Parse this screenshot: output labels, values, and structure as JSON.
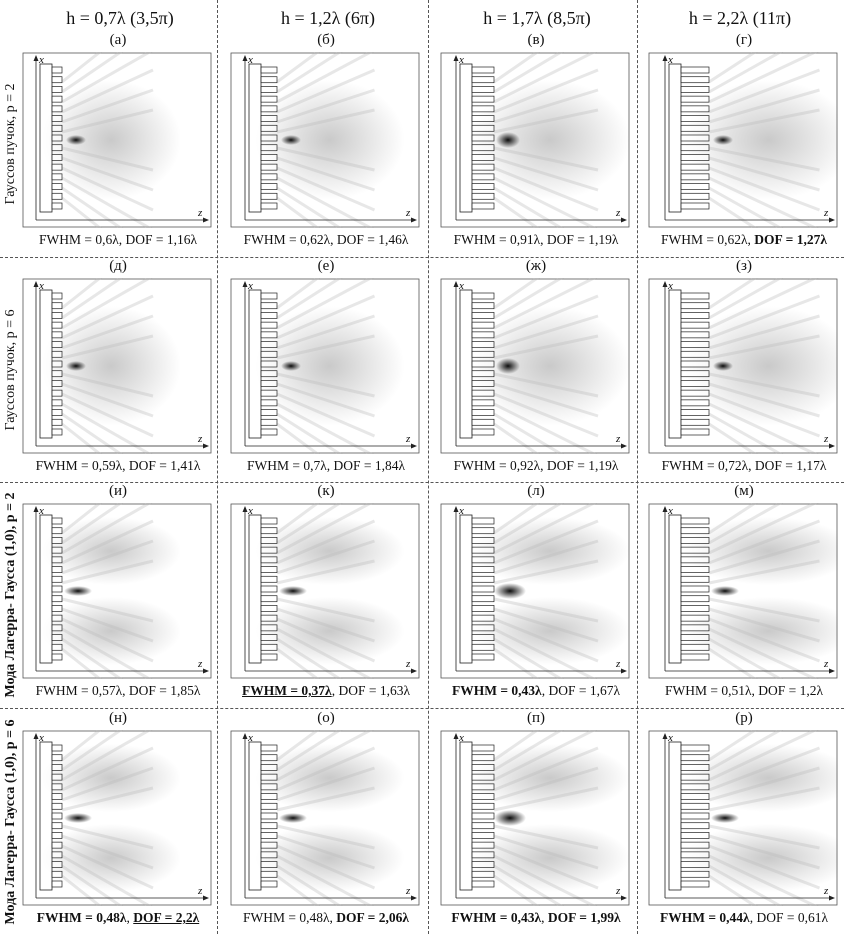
{
  "columns": [
    "h = 0,7λ (3,5π)",
    "h = 1,2λ (6π)",
    "h = 1,7λ (8,5π)",
    "h = 2,2λ (11π)"
  ],
  "rows": [
    {
      "label": "Гауссов пучок, p = 2",
      "bold": false,
      "cells": [
        {
          "letter": "(а)",
          "fwhm": "FWHM = 0,6λ",
          "dof": "DOF = 1,16λ",
          "fwhm_bold": false,
          "dof_bold": false,
          "fwhm_u": false,
          "dof_u": false
        },
        {
          "letter": "(б)",
          "fwhm": "FWHM = 0,62λ",
          "dof": "DOF = 1,46λ",
          "fwhm_bold": false,
          "dof_bold": false,
          "fwhm_u": false,
          "dof_u": false
        },
        {
          "letter": "(в)",
          "fwhm": "FWHM = 0,91λ",
          "dof": "DOF = 1,19λ",
          "fwhm_bold": false,
          "dof_bold": false,
          "fwhm_u": false,
          "dof_u": false
        },
        {
          "letter": "(г)",
          "fwhm": "FWHM = 0,62λ",
          "dof": "DOF = 1,27λ",
          "fwhm_bold": false,
          "dof_bold": true,
          "fwhm_u": false,
          "dof_u": false
        }
      ]
    },
    {
      "label": "Гауссов пучок, p = 6",
      "bold": false,
      "cells": [
        {
          "letter": "(д)",
          "fwhm": "FWHM = 0,59λ",
          "dof": "DOF = 1,41λ",
          "fwhm_bold": false,
          "dof_bold": false,
          "fwhm_u": false,
          "dof_u": false
        },
        {
          "letter": "(е)",
          "fwhm": "FWHM = 0,7λ",
          "dof": "DOF = 1,84λ",
          "fwhm_bold": false,
          "dof_bold": false,
          "fwhm_u": false,
          "dof_u": false
        },
        {
          "letter": "(ж)",
          "fwhm": "FWHM = 0,92λ",
          "dof": "DOF = 1,19λ",
          "fwhm_bold": false,
          "dof_bold": false,
          "fwhm_u": false,
          "dof_u": false
        },
        {
          "letter": "(з)",
          "fwhm": "FWHM = 0,72λ",
          "dof": "DOF = 1,17λ",
          "fwhm_bold": false,
          "dof_bold": false,
          "fwhm_u": false,
          "dof_u": false
        }
      ]
    },
    {
      "label": "Мода Лагерра- Гаусса (1,0), p = 2",
      "bold": true,
      "cells": [
        {
          "letter": "(и)",
          "fwhm": "FWHM = 0,57λ",
          "dof": "DOF = 1,85λ",
          "fwhm_bold": false,
          "dof_bold": false,
          "fwhm_u": false,
          "dof_u": false
        },
        {
          "letter": "(к)",
          "fwhm": "FWHM = 0,37λ",
          "dof": "DOF = 1,63λ",
          "fwhm_bold": true,
          "dof_bold": false,
          "fwhm_u": true,
          "dof_u": false
        },
        {
          "letter": "(л)",
          "fwhm": "FWHM = 0,43λ",
          "dof": "DOF = 1,67λ",
          "fwhm_bold": true,
          "dof_bold": false,
          "fwhm_u": false,
          "dof_u": false
        },
        {
          "letter": "(м)",
          "fwhm": "FWHM = 0,51λ",
          "dof": "DOF = 1,2λ",
          "fwhm_bold": false,
          "dof_bold": false,
          "fwhm_u": false,
          "dof_u": false
        }
      ]
    },
    {
      "label": "Мода Лагерра- Гаусса (1,0), p = 6",
      "bold": true,
      "cells": [
        {
          "letter": "(н)",
          "fwhm": "FWHM = 0,48λ",
          "dof": "DOF = 2,2λ",
          "fwhm_bold": true,
          "dof_bold": true,
          "fwhm_u": false,
          "dof_u": true
        },
        {
          "letter": "(о)",
          "fwhm": "FWHM = 0,48λ",
          "dof": "DOF = 2,06λ",
          "fwhm_bold": false,
          "dof_bold": true,
          "fwhm_u": false,
          "dof_u": false
        },
        {
          "letter": "(п)",
          "fwhm": "FWHM = 0,43λ",
          "dof": "DOF = 1,99λ",
          "fwhm_bold": true,
          "dof_bold": true,
          "fwhm_u": false,
          "dof_u": false
        },
        {
          "letter": "(р)",
          "fwhm": "FWHM = 0,44λ",
          "dof": "DOF = 0,61λ",
          "fwhm_bold": true,
          "dof_bold": false,
          "fwhm_u": false,
          "dof_u": false
        }
      ]
    }
  ],
  "axes": {
    "x": "x",
    "z": "z"
  },
  "separator": ", "
}
